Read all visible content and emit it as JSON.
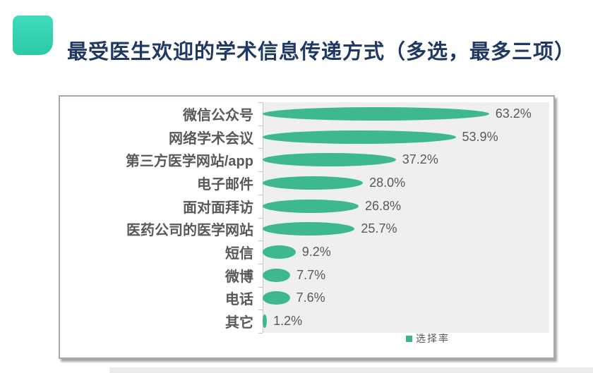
{
  "title": "最受医生欢迎的学术信息传递方式（多选，最多三项）",
  "legend": {
    "label": "选择率",
    "swatch_color": "#3eb48c"
  },
  "colors": {
    "accent_teal": "#2ecfae",
    "bar_green": "#3eb88f",
    "title_navy": "#203864",
    "plot_background": "#efefef",
    "text_gray": "#595959"
  },
  "chart_data": {
    "type": "bar",
    "orientation": "horizontal",
    "title": "最受医生欢迎的学术信息传递方式（多选，最多三项）",
    "categories": [
      "微信公众号",
      "网络学术会议",
      "第三方医学网站/app",
      "电子邮件",
      "面对面拜访",
      "医药公司的医学网站",
      "短信",
      "微博",
      "电话",
      "其它"
    ],
    "values": [
      63.2,
      53.9,
      37.2,
      28.0,
      26.8,
      25.7,
      9.2,
      7.7,
      7.6,
      1.2
    ],
    "value_labels": [
      "63.2%",
      "53.9%",
      "37.2%",
      "28.0%",
      "26.8%",
      "25.7%",
      "9.2%",
      "7.7%",
      "7.6%",
      "1.2%"
    ],
    "series": [
      {
        "name": "选择率",
        "values": [
          63.2,
          53.9,
          37.2,
          28.0,
          26.8,
          25.7,
          9.2,
          7.7,
          7.6,
          1.2
        ]
      }
    ],
    "xlabel": "",
    "ylabel": "",
    "xlim": [
      0,
      80
    ],
    "grid": false,
    "legend_position": "bottom-right",
    "bar_color": "#3eb88f"
  }
}
